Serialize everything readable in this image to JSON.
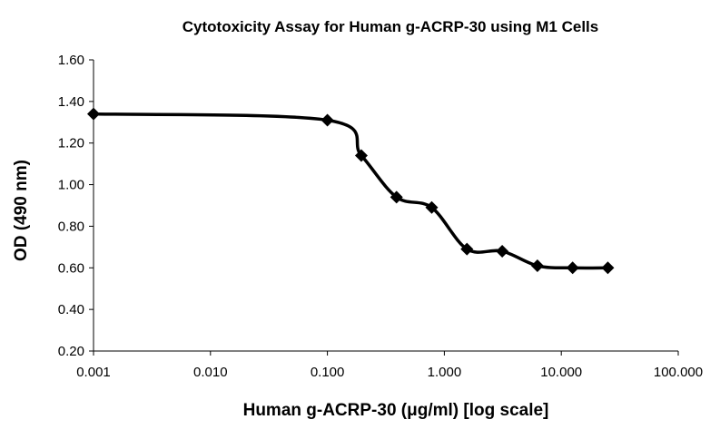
{
  "chart_data": {
    "type": "line",
    "title": "Cytotoxicity Assay for Human g-ACRP-30 using M1 Cells",
    "xlabel": "Human g-ACRP-30 (μg/ml) [log scale]",
    "ylabel": "OD (490 nm)",
    "xscale": "log",
    "xlim": [
      0.001,
      100
    ],
    "ylim": [
      0.2,
      1.6
    ],
    "xticks": [
      "0.001",
      "0.010",
      "0.100",
      "1.000",
      "10.000",
      "100.000"
    ],
    "yticks": [
      "0.20",
      "0.40",
      "0.60",
      "0.80",
      "1.00",
      "1.20",
      "1.40",
      "1.60"
    ],
    "grid": false,
    "legend": "none",
    "series": [
      {
        "x": [
          0.001,
          0.1,
          0.195,
          0.39,
          0.78,
          1.56,
          3.125,
          6.25,
          12.5,
          25
        ],
        "y": [
          1.34,
          1.31,
          1.14,
          0.94,
          0.89,
          0.69,
          0.68,
          0.61,
          0.6,
          0.6
        ],
        "color": "#000000",
        "marker": "diamond"
      }
    ]
  }
}
